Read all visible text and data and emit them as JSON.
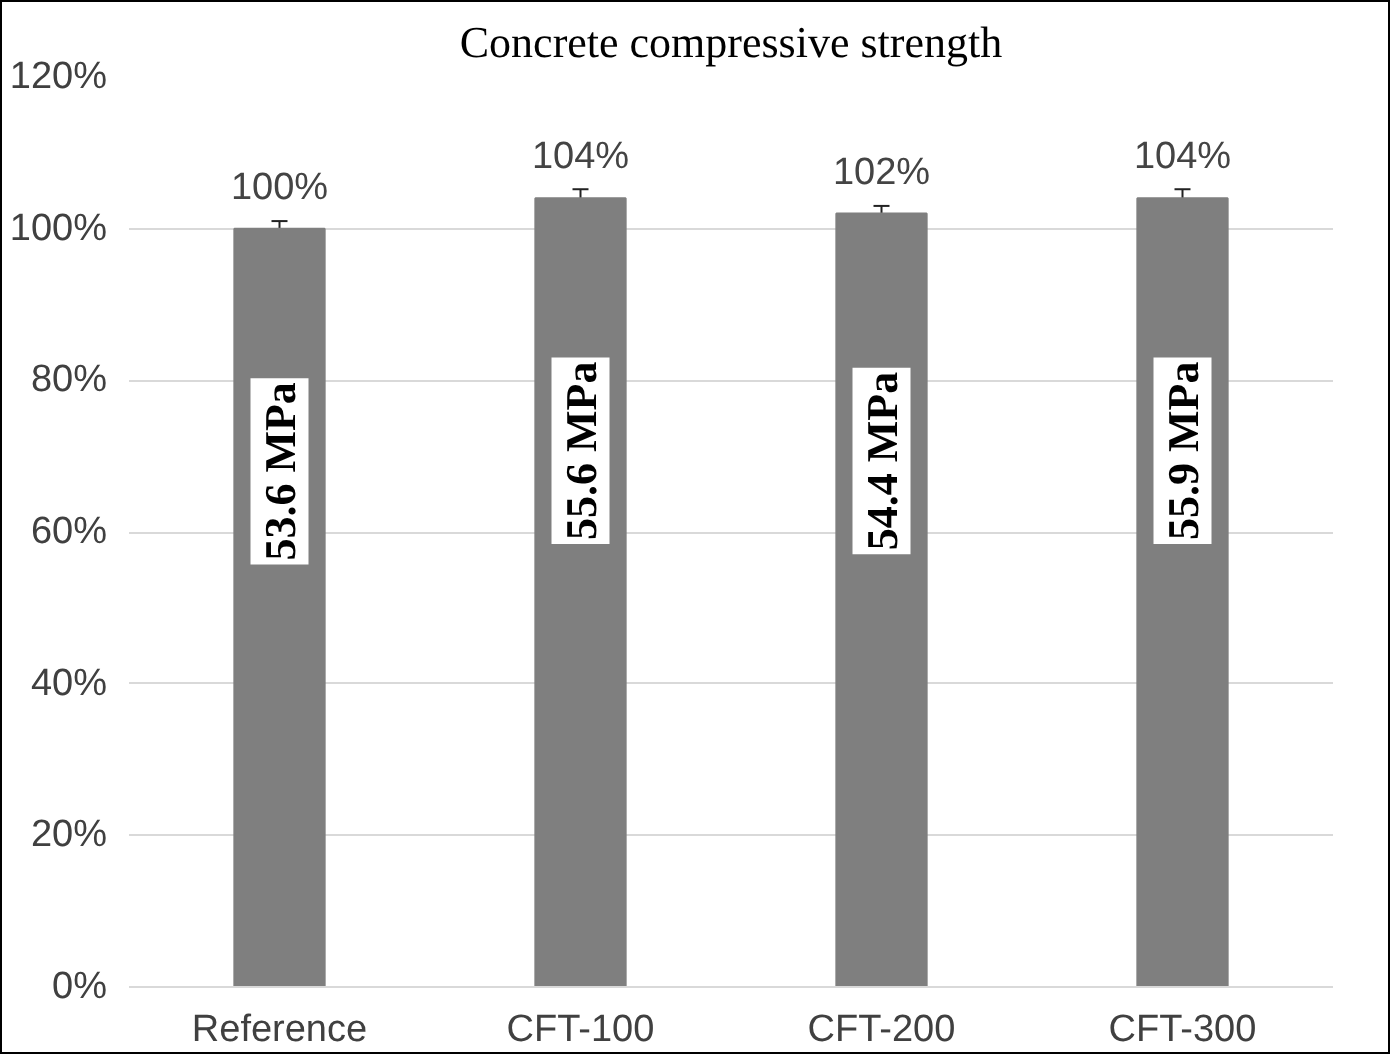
{
  "chart_data": {
    "type": "bar",
    "title": "Concrete compressive strength",
    "categories": [
      "Reference",
      "CFT-100",
      "CFT-200",
      "CFT-300"
    ],
    "values": [
      100,
      104,
      102,
      104
    ],
    "color": "#7f7f7f",
    "errors": [
      1,
      1.2,
      1,
      1.2
    ],
    "value_labels": [
      "100%",
      "104%",
      "102%",
      "104%"
    ],
    "ylim": [
      0,
      120
    ],
    "yticks": [
      {
        "value": 0,
        "label": "0%"
      },
      {
        "value": 20,
        "label": "20%"
      },
      {
        "value": 40,
        "label": "40%"
      },
      {
        "value": 60,
        "label": "60%"
      },
      {
        "value": 80,
        "label": "80%"
      },
      {
        "value": 100,
        "label": "100%"
      },
      {
        "value": 120,
        "label": "120%"
      }
    ],
    "grid": "y",
    "annotations": [
      "53.6 MPa",
      "55.6 MPa",
      "54.4 MPa",
      "55.9 MPa"
    ]
  }
}
